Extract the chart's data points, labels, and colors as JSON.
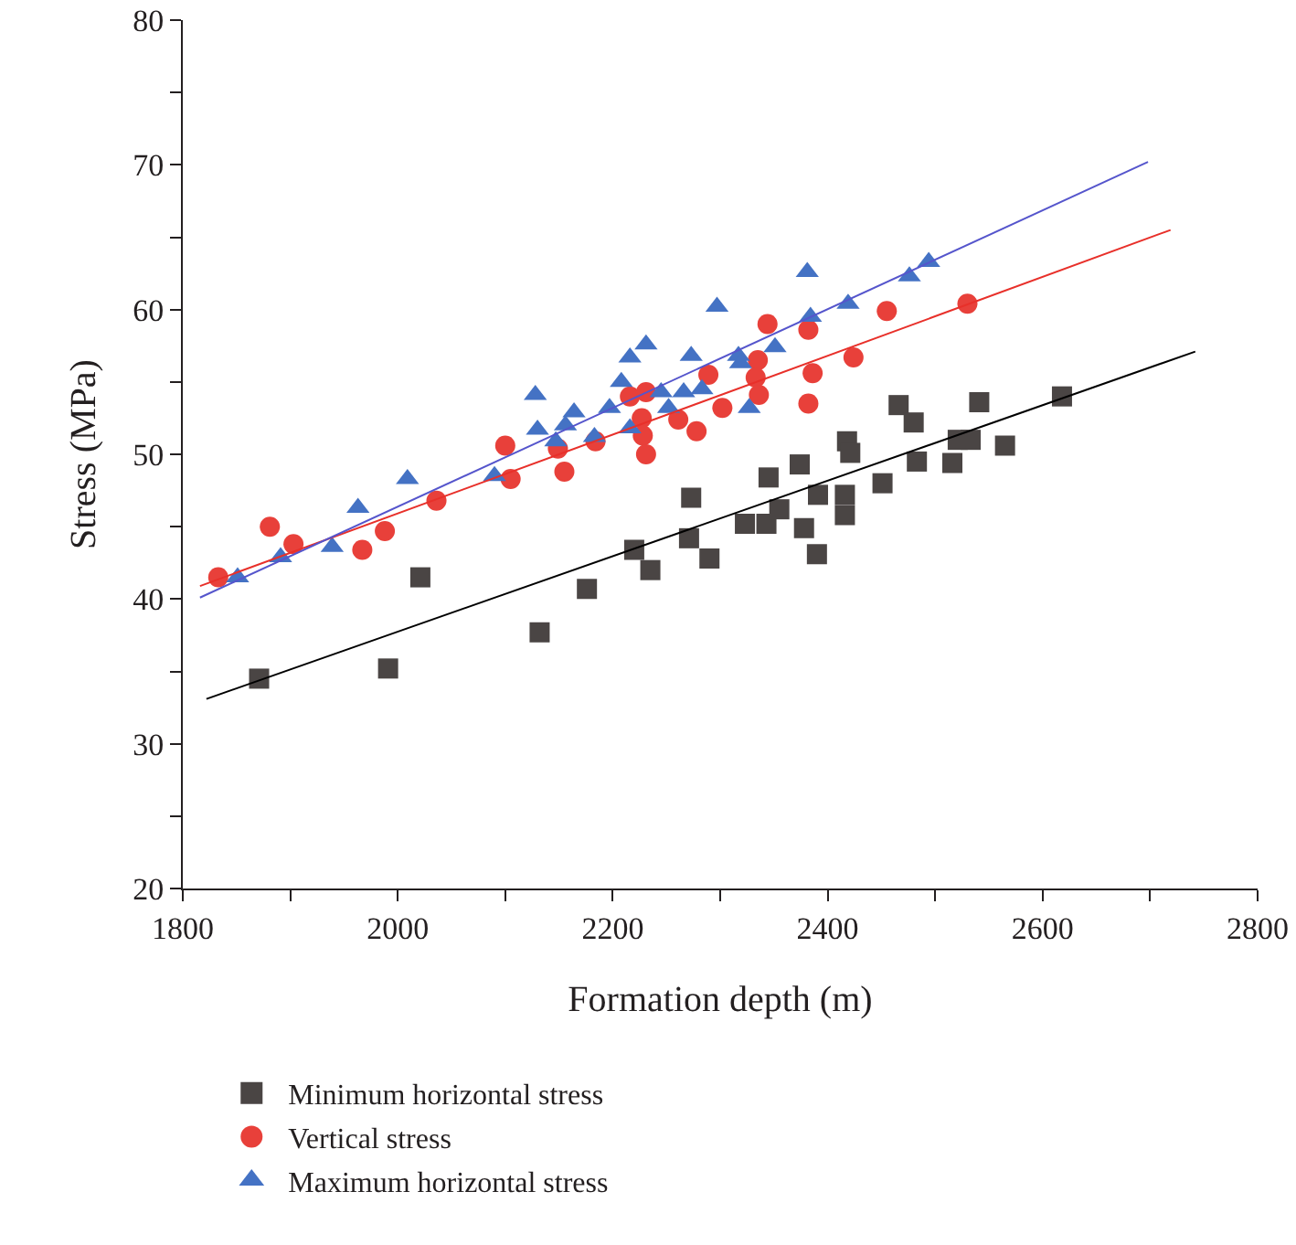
{
  "chart_data": {
    "type": "scatter",
    "xlabel": "Formation depth (m)",
    "ylabel": "Stress (MPa)",
    "xlim": [
      1800,
      2800
    ],
    "xticks": [
      1800,
      {
        "value": 1900,
        "label": null
      },
      2000,
      {
        "value": 2100,
        "label": null
      },
      2200,
      {
        "value": 2300,
        "label": null
      },
      2400,
      {
        "value": 2500,
        "label": null
      },
      2600,
      {
        "value": 2700,
        "label": null
      },
      2800
    ],
    "ylim": [
      20,
      80
    ],
    "yticks": [
      20,
      {
        "value": 25,
        "label": null
      },
      30,
      {
        "value": 35,
        "label": null
      },
      40,
      {
        "value": 45,
        "label": null
      },
      50,
      {
        "value": 55,
        "label": null
      },
      60,
      {
        "value": 65,
        "label": null
      },
      70,
      {
        "value": 75,
        "label": null
      },
      80
    ],
    "grid": false,
    "legend": "bottom",
    "series": [
      {
        "name": "Minimum horizontal stress",
        "type": "scatter",
        "marker": "square",
        "color": "#4a4544",
        "x": [
          1871,
          2021,
          1991,
          2132,
          2176,
          2220,
          2235,
          2273,
          2271,
          2290,
          2323,
          2343,
          2355,
          2345,
          2374,
          2378,
          2390,
          2391,
          2416,
          2416,
          2418,
          2421,
          2451,
          2466,
          2480,
          2483,
          2516,
          2521,
          2533,
          2541,
          2565,
          2618
        ],
        "values": [
          34.5,
          41.5,
          35.2,
          37.7,
          40.7,
          43.4,
          42.0,
          47.0,
          44.2,
          42.8,
          45.2,
          45.2,
          46.2,
          48.4,
          49.3,
          44.9,
          43.1,
          47.2,
          47.2,
          45.8,
          50.9,
          50.1,
          48.0,
          53.4,
          52.2,
          49.5,
          49.4,
          51.0,
          51.0,
          53.6,
          50.6,
          54.0
        ]
      },
      {
        "name": "Vertical stress",
        "type": "scatter",
        "marker": "circle",
        "color": "#e8403a",
        "x": [
          1833,
          1881,
          1903,
          1967,
          1988,
          2036,
          2100,
          2105,
          2155,
          2149,
          2184,
          2216,
          2231,
          2227,
          2228,
          2231,
          2261,
          2278,
          2289,
          2302,
          2335,
          2333,
          2336,
          2344,
          2382,
          2386,
          2382,
          2424,
          2455,
          2530
        ],
        "values": [
          41.5,
          45.0,
          43.8,
          43.4,
          44.7,
          46.8,
          50.6,
          48.3,
          48.8,
          50.4,
          50.9,
          54.0,
          54.3,
          52.5,
          51.3,
          50.0,
          52.4,
          51.6,
          55.5,
          53.2,
          56.5,
          55.3,
          54.1,
          59.0,
          58.6,
          55.6,
          53.5,
          56.7,
          59.9,
          60.4
        ]
      },
      {
        "name": "Maximum horizontal stress",
        "type": "scatter",
        "marker": "triangle",
        "color": "#4472c4",
        "x": [
          1851,
          1891,
          1939,
          1963,
          2009,
          2090,
          2128,
          2130,
          2147,
          2156,
          2164,
          2183,
          2197,
          2208,
          2216,
          2231,
          2216,
          2245,
          2252,
          2266,
          2283,
          2273,
          2297,
          2317,
          2319,
          2351,
          2327,
          2384,
          2381,
          2419,
          2476,
          2494
        ],
        "values": [
          41.5,
          42.9,
          43.6,
          46.3,
          48.3,
          48.5,
          54.1,
          51.7,
          50.9,
          52.0,
          52.9,
          51.2,
          53.2,
          55.0,
          56.7,
          57.6,
          51.8,
          54.3,
          53.2,
          54.3,
          54.5,
          56.8,
          60.2,
          56.8,
          56.3,
          57.4,
          53.2,
          59.5,
          62.6,
          60.4,
          62.3,
          63.3
        ]
      },
      {
        "type": "line",
        "marker": "none",
        "color": "#000000",
        "x": [
          1822,
          2742
        ],
        "values": [
          33.1,
          57.1
        ]
      },
      {
        "type": "line",
        "marker": "none",
        "color": "#e8302a",
        "x": [
          1816,
          2719
        ],
        "values": [
          40.9,
          65.5
        ]
      },
      {
        "type": "line",
        "marker": "none",
        "color": "#5555cc",
        "x": [
          1816,
          2698
        ],
        "values": [
          40.1,
          70.2
        ]
      }
    ]
  }
}
